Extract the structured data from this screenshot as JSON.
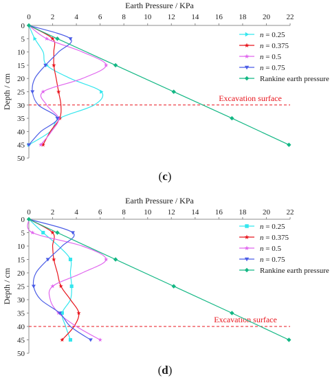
{
  "chart_data": [
    {
      "type": "line",
      "panel_label": "(c)",
      "xlabel": "Earth Pressure / KPa",
      "ylabel": "Depth / cm",
      "xlim": [
        0,
        22
      ],
      "ylim": [
        0,
        50
      ],
      "xticks": [
        0,
        2,
        4,
        6,
        8,
        10,
        12,
        14,
        16,
        18,
        20,
        22
      ],
      "yticks": [
        0,
        5,
        10,
        15,
        20,
        25,
        30,
        35,
        40,
        45,
        50
      ],
      "x_axis_position": "top",
      "y_inverted": true,
      "legend_position": "top-right",
      "excavation": {
        "depth": 30,
        "label": "Excavation surface",
        "color": "#e8141c"
      },
      "series": [
        {
          "name": "n = 0.25",
          "color": "#33e6ee",
          "marker": "tri-right",
          "points": [
            [
              0,
              0
            ],
            [
              0.5,
              5
            ],
            [
              1.2,
              10
            ],
            [
              1.5,
              15
            ],
            [
              3.5,
              20
            ],
            [
              6.1,
              25
            ],
            [
              5.5,
              30
            ],
            [
              2.6,
              35
            ],
            [
              1.8,
              40
            ],
            [
              0,
              45
            ]
          ]
        },
        {
          "name": "n = 0.375",
          "color": "#e8141c",
          "marker": "star",
          "points": [
            [
              0,
              0
            ],
            [
              2.0,
              5
            ],
            [
              2.1,
              10
            ],
            [
              2.1,
              15
            ],
            [
              2.3,
              20
            ],
            [
              2.5,
              25
            ],
            [
              2.7,
              30
            ],
            [
              2.6,
              35
            ],
            [
              1.8,
              40
            ],
            [
              1.2,
              45
            ]
          ]
        },
        {
          "name": "n = 0.5",
          "color": "#e066ee",
          "marker": "star",
          "points": [
            [
              0,
              0
            ],
            [
              1.5,
              5
            ],
            [
              4.5,
              10
            ],
            [
              6.5,
              15
            ],
            [
              4.5,
              20
            ],
            [
              1.2,
              25
            ],
            [
              1.5,
              30
            ],
            [
              2.5,
              35
            ],
            [
              1.9,
              40
            ],
            [
              1.0,
              45
            ]
          ]
        },
        {
          "name": "n = 0.75",
          "color": "#4a5ce6",
          "marker": "tri-down",
          "points": [
            [
              0,
              0
            ],
            [
              3.5,
              5
            ],
            [
              2.5,
              10
            ],
            [
              1.4,
              15
            ],
            [
              0.5,
              20
            ],
            [
              0.3,
              25
            ],
            [
              0.8,
              30
            ],
            [
              2.4,
              35
            ],
            [
              1.0,
              40
            ],
            [
              0,
              45
            ]
          ]
        },
        {
          "name": "Rankine earth pressure",
          "color": "#13b784",
          "marker": "diamond",
          "points": [
            [
              0,
              0
            ],
            [
              2.4,
              5
            ],
            [
              7.3,
              15
            ],
            [
              12.2,
              25
            ],
            [
              17.1,
              35
            ],
            [
              21.9,
              45
            ]
          ]
        }
      ]
    },
    {
      "type": "line",
      "panel_label": "(d)",
      "xlabel": "Earth Pressure / KPa",
      "ylabel": "Depth / cm",
      "xlim": [
        0,
        22
      ],
      "ylim": [
        0,
        50
      ],
      "xticks": [
        0,
        2,
        4,
        6,
        8,
        10,
        12,
        14,
        16,
        18,
        20,
        22
      ],
      "yticks": [
        0,
        5,
        10,
        15,
        20,
        25,
        30,
        35,
        40,
        45,
        50
      ],
      "x_axis_position": "top",
      "y_inverted": true,
      "legend_position": "top-right",
      "excavation": {
        "depth": 40,
        "label": "Excavation surface",
        "color": "#e8141c"
      },
      "series": [
        {
          "name": "n = 0.25",
          "color": "#33e6ee",
          "marker": "square",
          "points": [
            [
              0,
              0
            ],
            [
              1.2,
              5
            ],
            [
              2.5,
              10
            ],
            [
              3.5,
              15
            ],
            [
              3.5,
              20
            ],
            [
              3.6,
              25
            ],
            [
              3.5,
              30
            ],
            [
              2.8,
              35
            ],
            [
              3.1,
              40
            ],
            [
              3.5,
              45
            ]
          ]
        },
        {
          "name": "n = 0.375",
          "color": "#e8141c",
          "marker": "star",
          "points": [
            [
              0,
              0
            ],
            [
              2.0,
              5
            ],
            [
              2.0,
              10
            ],
            [
              2.1,
              15
            ],
            [
              2.4,
              20
            ],
            [
              2.7,
              25
            ],
            [
              3.5,
              30
            ],
            [
              4.2,
              35
            ],
            [
              3.8,
              40
            ],
            [
              2.8,
              45
            ]
          ]
        },
        {
          "name": "n = 0.5",
          "color": "#e066ee",
          "marker": "star",
          "points": [
            [
              0,
              0
            ],
            [
              0.3,
              5
            ],
            [
              4.5,
              10
            ],
            [
              6.5,
              15
            ],
            [
              4.5,
              20
            ],
            [
              2.0,
              25
            ],
            [
              1.8,
              30
            ],
            [
              2.5,
              35
            ],
            [
              4.0,
              40
            ],
            [
              6.0,
              45
            ]
          ]
        },
        {
          "name": "n = 0.75",
          "color": "#4a5ce6",
          "marker": "tri-down",
          "points": [
            [
              0,
              0
            ],
            [
              3.7,
              5
            ],
            [
              2.8,
              10
            ],
            [
              1.6,
              15
            ],
            [
              0.6,
              20
            ],
            [
              0.4,
              25
            ],
            [
              1.0,
              30
            ],
            [
              2.6,
              35
            ],
            [
              3.5,
              40
            ],
            [
              5.2,
              45
            ]
          ]
        },
        {
          "name": "Rankine earth pressure",
          "color": "#13b784",
          "marker": "diamond",
          "points": [
            [
              0,
              0
            ],
            [
              2.4,
              5
            ],
            [
              7.3,
              15
            ],
            [
              12.2,
              25
            ],
            [
              17.1,
              35
            ],
            [
              21.9,
              45
            ]
          ]
        }
      ]
    }
  ]
}
